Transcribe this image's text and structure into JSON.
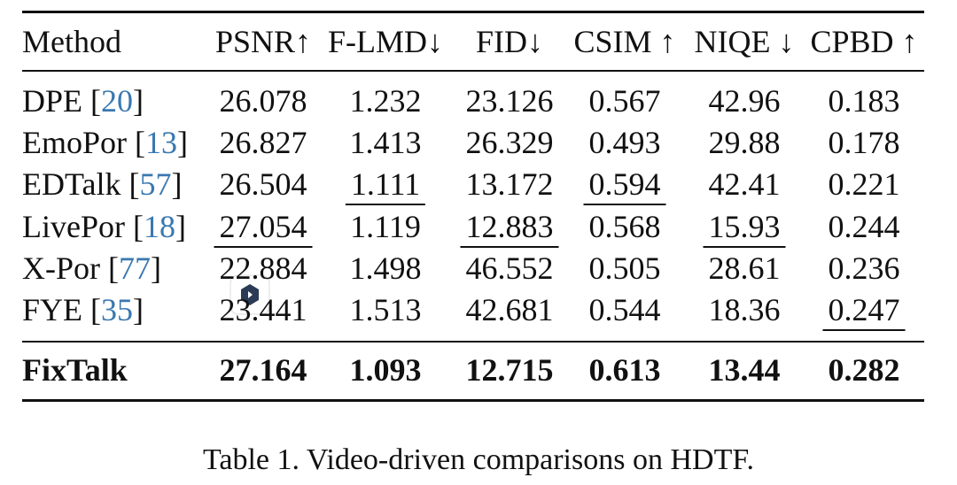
{
  "table": {
    "header": [
      "Method",
      "PSNR↑",
      "F-LMD↓",
      "FID↓",
      "CSIM ↑",
      "NIQE ↓",
      "CPBD ↑"
    ],
    "rows": [
      {
        "method": [
          "DPE [",
          "20",
          "]"
        ],
        "cells": [
          "26.078",
          "1.232",
          "23.126",
          "0.567",
          "42.96",
          "0.183"
        ],
        "underline": []
      },
      {
        "method": [
          "EmoPor [",
          "13",
          "]"
        ],
        "cells": [
          "26.827",
          "1.413",
          "26.329",
          "0.493",
          "29.88",
          "0.178"
        ],
        "underline": []
      },
      {
        "method": [
          "EDTalk [",
          "57",
          "]"
        ],
        "cells": [
          "26.504",
          "1.111",
          "13.172",
          "0.594",
          "42.41",
          "0.221"
        ],
        "underline": [
          1,
          3
        ]
      },
      {
        "method": [
          "LivePor [",
          "18",
          "]"
        ],
        "cells": [
          "27.054",
          "1.119",
          "12.883",
          "0.568",
          "15.93",
          "0.244"
        ],
        "underline": [
          0,
          2,
          4
        ]
      },
      {
        "method": [
          "X-Por [",
          "77",
          "]"
        ],
        "cells": [
          "22.884",
          "1.498",
          "46.552",
          "0.505",
          "28.61",
          "0.236"
        ],
        "underline": []
      },
      {
        "method": [
          "FYE [",
          "35",
          "]"
        ],
        "cells": [
          "23.441",
          "1.513",
          "42.681",
          "0.544",
          "18.36",
          "0.247"
        ],
        "underline": [
          5
        ]
      }
    ],
    "best": {
      "method": "FixTalk",
      "cells": [
        "27.164",
        "1.093",
        "12.715",
        "0.613",
        "13.44",
        "0.282"
      ]
    },
    "caption": "Table 1. Video-driven comparisons on HDTF."
  }
}
